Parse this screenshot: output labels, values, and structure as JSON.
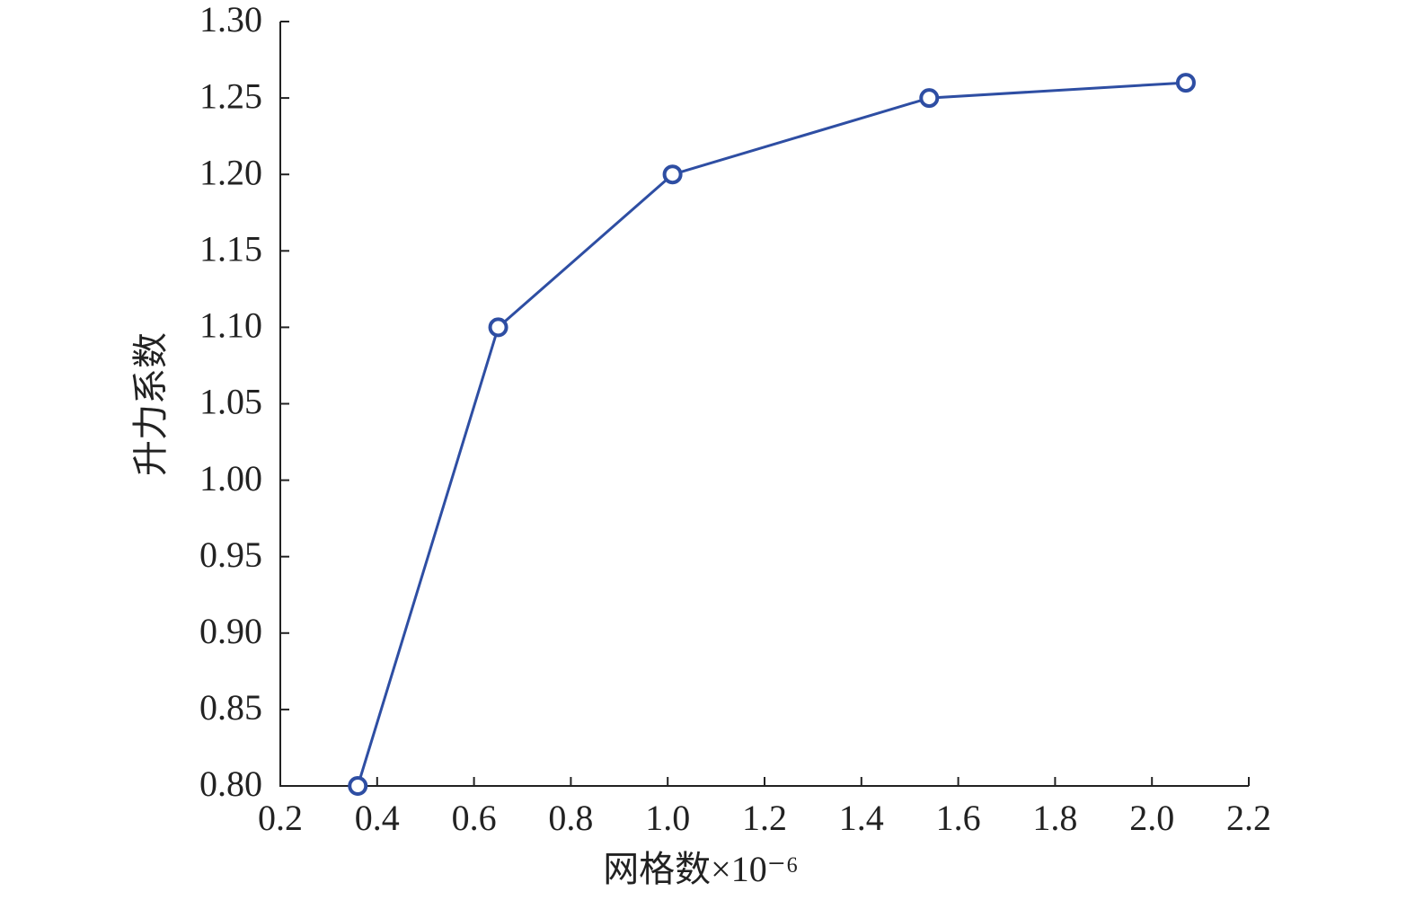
{
  "chart_data": {
    "type": "line",
    "x_label": "网格数×10⁻⁶",
    "y_label": "升力系数",
    "x": [
      0.36,
      0.65,
      1.01,
      1.54,
      2.07
    ],
    "series": [
      {
        "name": "升力系数",
        "color": "#2e4ea3",
        "values": [
          0.8,
          1.1,
          1.2,
          1.25,
          1.26
        ]
      }
    ],
    "xlim": [
      0.2,
      2.2
    ],
    "xticks": [
      0.2,
      0.4,
      0.6,
      0.8,
      {
        "value": 1.0,
        "label": "1.0"
      },
      1.2,
      1.4,
      1.6,
      1.8,
      {
        "value": 2.0,
        "label": "2.0"
      },
      2.2
    ],
    "ylim": [
      0.8,
      1.3
    ],
    "yticks": [
      {
        "value": 0.8,
        "label": "0.80"
      },
      0.85,
      {
        "value": 0.9,
        "label": "0.90"
      },
      0.95,
      {
        "value": 1.0,
        "label": "1.00"
      },
      1.05,
      {
        "value": 1.1,
        "label": "1.10"
      },
      1.15,
      {
        "value": 1.2,
        "label": "1.20"
      },
      1.25,
      {
        "value": 1.3,
        "label": "1.30"
      }
    ],
    "grid": false
  }
}
